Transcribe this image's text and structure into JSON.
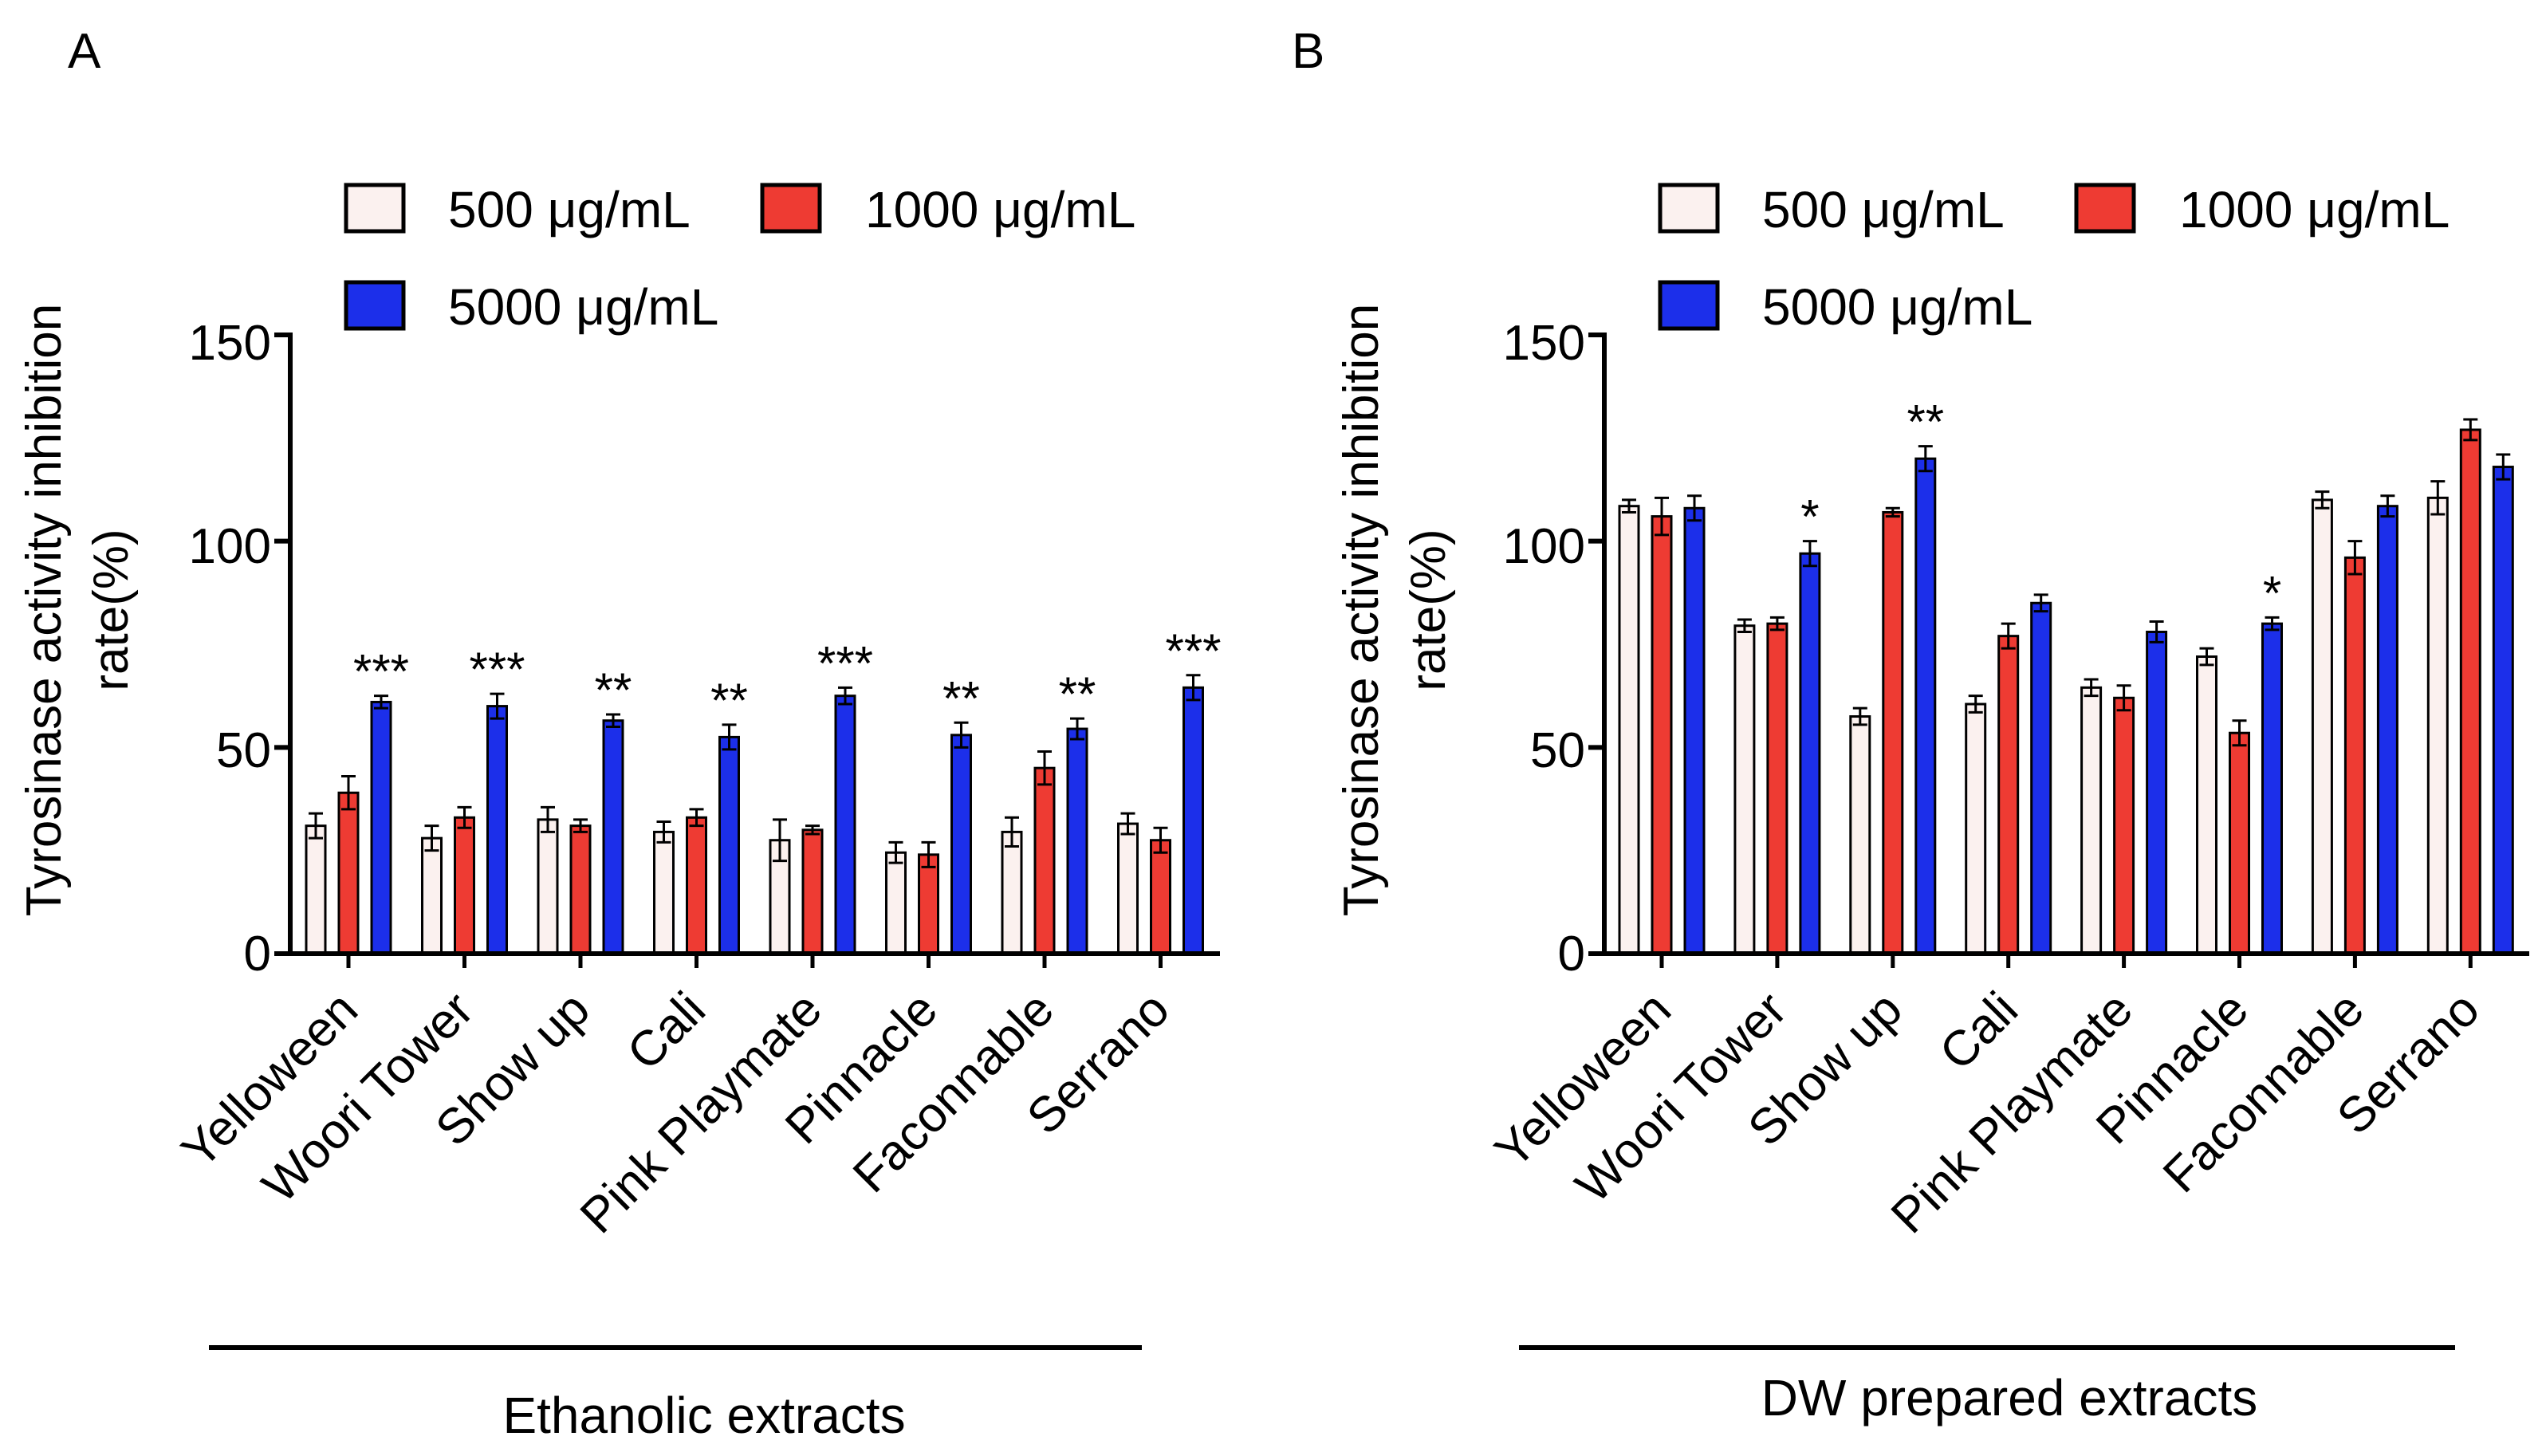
{
  "colors": {
    "c500": "#FBF1EF",
    "c1000": "#EE3B33",
    "c5000": "#1C2FEA",
    "axis": "#000000"
  },
  "chart_data": [
    {
      "panel_label": "A",
      "type": "bar",
      "title": "",
      "ylabel_line1": "Tyrosinase activity inhibition",
      "ylabel_line2": "rate(%)",
      "group_label": "Ethanolic extracts",
      "ylim": [
        0,
        150
      ],
      "yticks": [
        "0",
        "50",
        "100",
        "150"
      ],
      "legend": [
        "500 μg/mL",
        "1000 μg/mL",
        "5000 μg/mL"
      ],
      "categories": [
        "Yelloween",
        "Woori Tower",
        "Show up",
        "Cali",
        "Pink Playmate",
        "Pinnacle",
        "Faconnable",
        "Serrano"
      ],
      "series": [
        {
          "name": "500 μg/mL",
          "values": [
            31,
            28,
            32.5,
            29.5,
            27.5,
            24.5,
            29.5,
            31.5
          ],
          "errors": [
            3,
            3,
            3,
            2.5,
            5,
            2.5,
            3.5,
            2.5
          ]
        },
        {
          "name": "1000 μg/mL",
          "values": [
            39,
            33,
            31,
            33,
            30,
            24,
            45,
            27.5
          ],
          "errors": [
            4,
            2.5,
            1.5,
            2,
            1,
            3,
            4,
            3
          ]
        },
        {
          "name": "5000 μg/mL",
          "values": [
            61,
            60,
            56.5,
            52.5,
            62.5,
            53,
            54.5,
            64.5
          ],
          "errors": [
            1.5,
            3,
            1.5,
            3,
            2,
            3,
            2.5,
            3
          ]
        }
      ],
      "significance": [
        "***",
        "***",
        "**",
        "**",
        "***",
        "**",
        "**",
        "***"
      ]
    },
    {
      "panel_label": "B",
      "type": "bar",
      "title": "",
      "ylabel_line1": "Tyrosinase activity inhibition",
      "ylabel_line2": "rate(%)",
      "group_label": "DW prepared extracts",
      "ylim": [
        0,
        150
      ],
      "yticks": [
        "0",
        "50",
        "100",
        "150"
      ],
      "legend": [
        "500 μg/mL",
        "1000 μg/mL",
        "5000 μg/mL"
      ],
      "categories": [
        "Yelloween",
        "Woori Tower",
        "Show up",
        "Cali",
        "Pink Playmate",
        "Pinnacle",
        "Faconnable",
        "Serrano"
      ],
      "series": [
        {
          "name": "500 μg/mL",
          "values": [
            108.5,
            79.5,
            57.5,
            60.5,
            64.5,
            72,
            110,
            110.5
          ],
          "errors": [
            1.5,
            1.5,
            2,
            2,
            2,
            2,
            2,
            4
          ]
        },
        {
          "name": "1000 μg/mL",
          "values": [
            106,
            80,
            107,
            77,
            62,
            53.5,
            96,
            127
          ],
          "errors": [
            4.5,
            1.5,
            1,
            3,
            3,
            3,
            4,
            2.5
          ]
        },
        {
          "name": "5000 μg/mL",
          "values": [
            108,
            97,
            120,
            85,
            78,
            80,
            108.5,
            118
          ],
          "errors": [
            3,
            3,
            3,
            2,
            2.5,
            1.5,
            2.5,
            3
          ]
        }
      ],
      "significance": [
        "",
        "*",
        "**",
        "",
        "",
        "*",
        "",
        ""
      ]
    }
  ]
}
